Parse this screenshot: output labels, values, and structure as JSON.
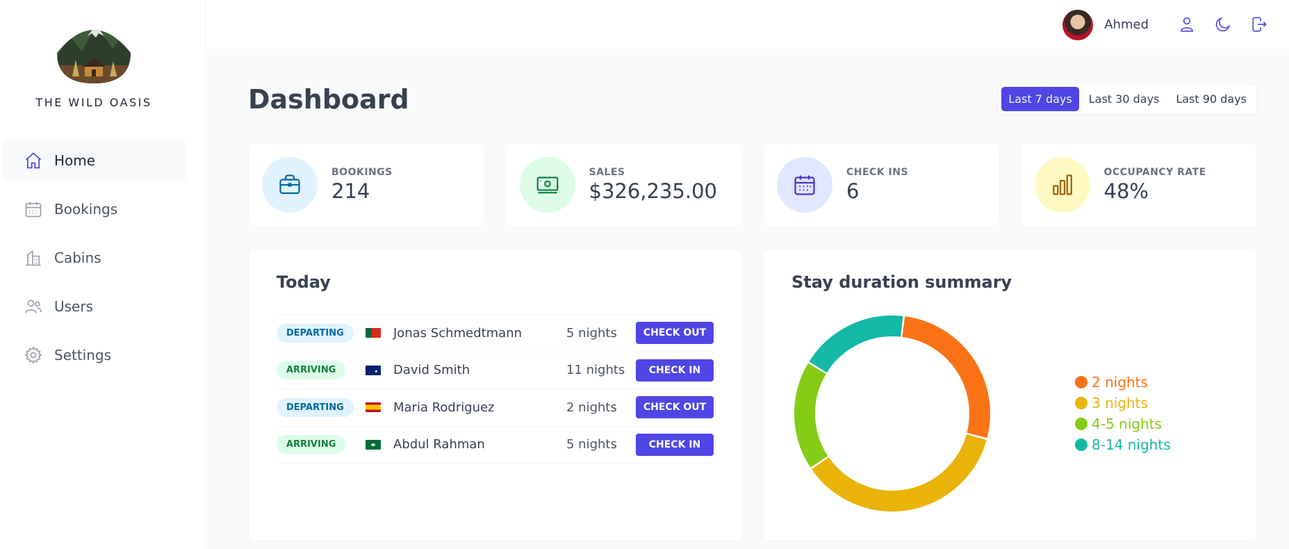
{
  "brand": {
    "name": "THE WILD OASIS"
  },
  "sidebar": {
    "items": [
      {
        "label": "Home",
        "icon": "home-icon",
        "active": true
      },
      {
        "label": "Bookings",
        "icon": "calendar-icon",
        "active": false
      },
      {
        "label": "Cabins",
        "icon": "building-icon",
        "active": false
      },
      {
        "label": "Users",
        "icon": "users-icon",
        "active": false
      },
      {
        "label": "Settings",
        "icon": "gear-icon",
        "active": false
      }
    ]
  },
  "header": {
    "user_name": "Ahmed",
    "icons": [
      "user-icon",
      "moon-icon",
      "logout-icon"
    ]
  },
  "main": {
    "title": "Dashboard",
    "filters": [
      "Last 7 days",
      "Last 30 days",
      "Last 90 days"
    ],
    "active_filter": "Last 7 days",
    "stats": [
      {
        "title": "Bookings",
        "value": "214",
        "icon": "briefcase-icon",
        "bg": "#e0f2fe",
        "color": "#0369a1"
      },
      {
        "title": "Sales",
        "value": "$326,235.00",
        "icon": "banknotes-icon",
        "bg": "#dcfce7",
        "color": "#15803d"
      },
      {
        "title": "Check ins",
        "value": "6",
        "icon": "calendar-days-icon",
        "bg": "#e0e7ff",
        "color": "#4338ca"
      },
      {
        "title": "Occupancy rate",
        "value": "48%",
        "icon": "chart-bar-icon",
        "bg": "#fef9c3",
        "color": "#a16207"
      }
    ],
    "today": {
      "title": "Today",
      "rows": [
        {
          "status": "Departing",
          "flag": "portugal-flag",
          "guest": "Jonas Schmedtmann",
          "nights": "5 nights",
          "action": "CHECK OUT"
        },
        {
          "status": "Arriving",
          "flag": "australia-flag",
          "guest": "David Smith",
          "nights": "11 nights",
          "action": "CHECK IN"
        },
        {
          "status": "Departing",
          "flag": "spain-flag",
          "guest": "Maria Rodriguez",
          "nights": "2 nights",
          "action": "CHECK OUT"
        },
        {
          "status": "Arriving",
          "flag": "saudi-arabia-flag",
          "guest": "Abdul Rahman",
          "nights": "5 nights",
          "action": "CHECK IN"
        }
      ]
    },
    "stay_summary": {
      "title": "Stay duration summary"
    }
  },
  "chart_data": {
    "type": "pie",
    "title": "Stay duration summary",
    "donut": true,
    "legend_position": "right",
    "categories": [
      "2 nights",
      "3 nights",
      "4-5 nights",
      "8-14 nights"
    ],
    "values": [
      3,
      4,
      2,
      2
    ],
    "colors": [
      "#f97316",
      "#eab308",
      "#84cc16",
      "#14b8a6"
    ]
  }
}
